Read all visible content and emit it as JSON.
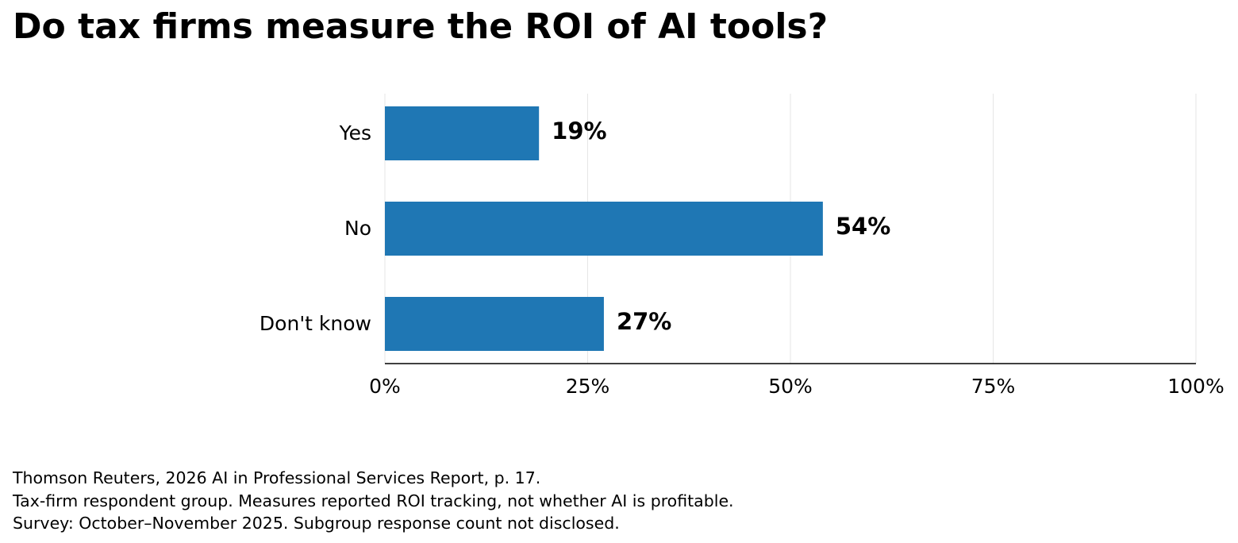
{
  "chart_data": {
    "type": "bar",
    "orientation": "horizontal",
    "title": "Do tax firms measure the ROI of AI tools?",
    "categories": [
      "Yes",
      "No",
      "Don't know"
    ],
    "values": [
      19,
      54,
      27
    ],
    "value_labels": [
      "19%",
      "54%",
      "27%"
    ],
    "xlim": [
      0,
      100
    ],
    "x_ticks": [
      0,
      25,
      50,
      75,
      100
    ],
    "x_tick_labels": [
      "0%",
      "25%",
      "50%",
      "75%",
      "100%"
    ],
    "xlabel": "",
    "ylabel": "",
    "grid": "vertical",
    "legend": "none",
    "bar_color": "#1f77b4"
  },
  "footnotes": {
    "source": "Thomson Reuters, 2026 AI in Professional Services Report, p. 17.",
    "scope": "Tax-firm respondent group. Measures reported ROI tracking, not whether AI is profitable.",
    "survey": "Survey: October–November 2025. Subgroup response count not disclosed."
  }
}
